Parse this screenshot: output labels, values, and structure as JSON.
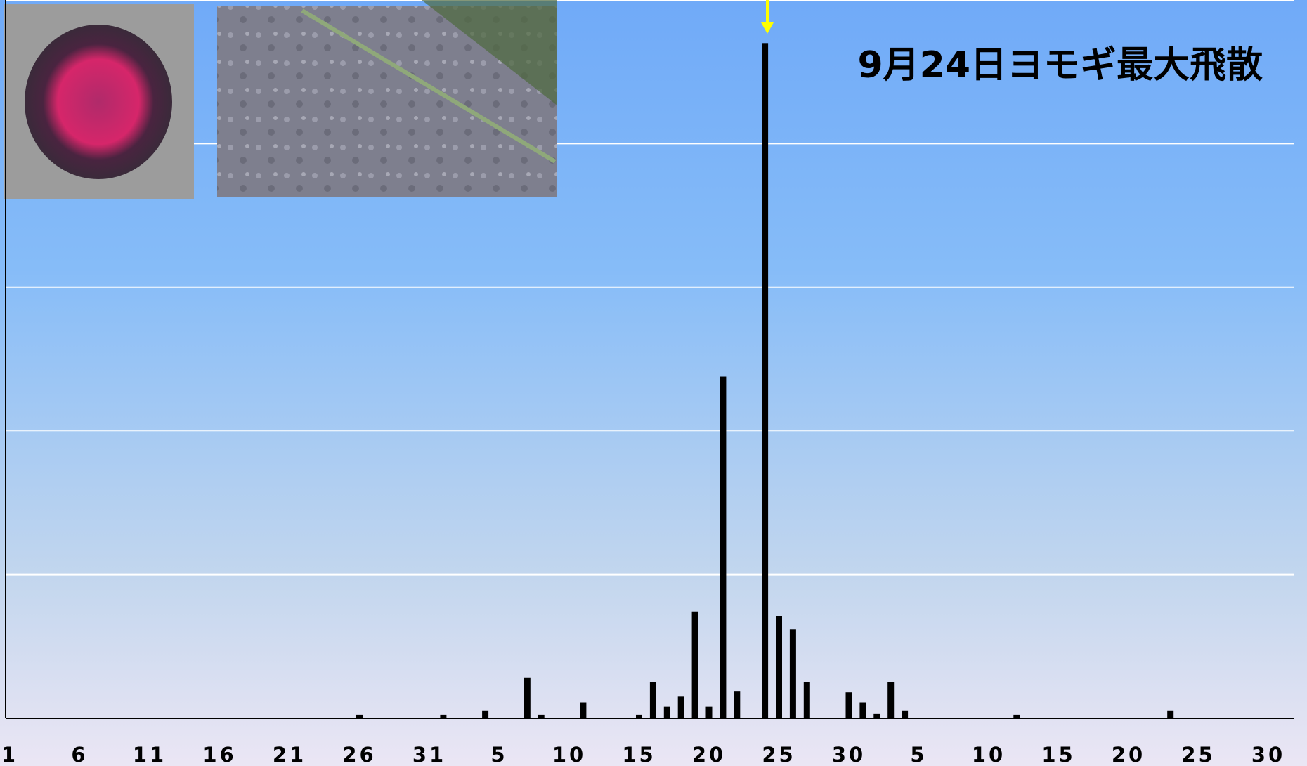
{
  "chart_data": {
    "type": "bar",
    "annotation": "9月24日ヨモギ最大飛散",
    "categories": [
      "1",
      null,
      null,
      null,
      null,
      "6",
      null,
      null,
      null,
      null,
      "11",
      null,
      null,
      null,
      null,
      "16",
      null,
      null,
      null,
      null,
      "21",
      null,
      null,
      null,
      null,
      "26",
      null,
      null,
      null,
      null,
      "31",
      null,
      null,
      null,
      null,
      "5",
      null,
      null,
      null,
      null,
      "10",
      null,
      null,
      null,
      null,
      "15",
      null,
      null,
      null,
      null,
      "20",
      null,
      null,
      null,
      null,
      "25",
      null,
      null,
      null,
      null,
      "30",
      null,
      null,
      null,
      null,
      "5",
      null,
      null,
      null,
      null,
      "10",
      null,
      null,
      null,
      null,
      "15",
      null,
      null,
      null,
      null,
      "20",
      null,
      null,
      null,
      null,
      "25",
      null,
      null,
      null,
      null,
      "30"
    ],
    "values": [
      0,
      0,
      0,
      0,
      0,
      0,
      0,
      0,
      0,
      0,
      0,
      0,
      0,
      0,
      0,
      0,
      0,
      0,
      0,
      0,
      0,
      0,
      0,
      0,
      0,
      0.025,
      0,
      0,
      0,
      0,
      0,
      0.025,
      0,
      0,
      0.05,
      0,
      0,
      0.28,
      0.025,
      0,
      0,
      0.11,
      0,
      0,
      0,
      0.025,
      0.25,
      0.08,
      0.15,
      0.74,
      0.08,
      2.38,
      0.19,
      0,
      4.7,
      0.71,
      0.62,
      0.25,
      0,
      0,
      0.18,
      0.11,
      0.03,
      0.25,
      0.05,
      0,
      0,
      0,
      0,
      0,
      0,
      0,
      0.025,
      0,
      0,
      0,
      0,
      0,
      0,
      0,
      0,
      0,
      0,
      0.05,
      0,
      0,
      0,
      0,
      0,
      0,
      0
    ],
    "color": "#000000",
    "ylim": [
      0,
      5
    ],
    "yticks": [
      0,
      1,
      2,
      3,
      4,
      5
    ],
    "grid": true
  }
}
